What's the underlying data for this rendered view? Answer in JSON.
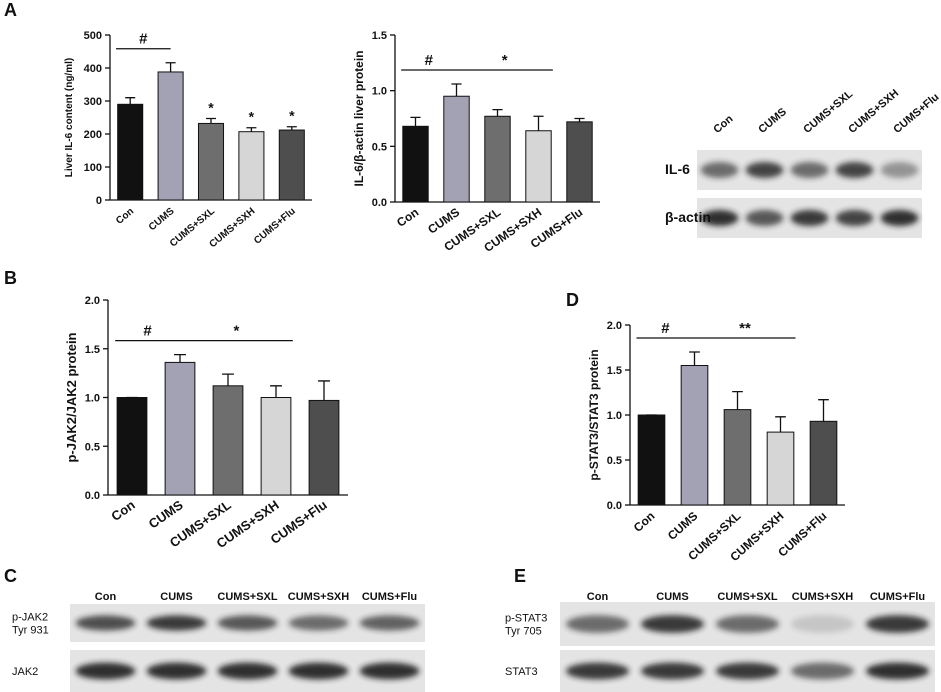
{
  "panels": [
    "A",
    "B",
    "C",
    "D",
    "E"
  ],
  "chart_data": [
    {
      "type": "bar",
      "ylabel": "Liver IL-6 content (ng/ml)",
      "categories": [
        "Con",
        "CUMS",
        "CUMS+SXL",
        "CUMS+SXH",
        "CUMS+Flu"
      ],
      "values": [
        290,
        388,
        232,
        207,
        212
      ],
      "errors": [
        20,
        28,
        15,
        12,
        10
      ],
      "colors": [
        "#111111",
        "#a2a2b4",
        "#6e6e6e",
        "#d6d6d6",
        "#4e4e4e"
      ],
      "ylim": [
        0,
        500
      ],
      "yticks": [
        0,
        100,
        200,
        300,
        400,
        500
      ],
      "annotations": [
        "#",
        "*",
        "*",
        "*"
      ]
    },
    {
      "type": "bar",
      "ylabel": "IL-6/β-actin liver protein",
      "categories": [
        "Con",
        "CUMS",
        "CUMS+SXL",
        "CUMS+SXH",
        "CUMS+Flu"
      ],
      "values": [
        0.68,
        0.95,
        0.77,
        0.64,
        0.72
      ],
      "errors": [
        0.08,
        0.11,
        0.06,
        0.13,
        0.03
      ],
      "colors": [
        "#111111",
        "#a2a2b4",
        "#6e6e6e",
        "#d6d6d6",
        "#4e4e4e"
      ],
      "ylim": [
        0,
        1.5
      ],
      "yticks": [
        {
          "value": 0,
          "label": "0.0"
        },
        {
          "value": 0.5,
          "label": "0.5"
        },
        {
          "value": 1,
          "label": "1.0"
        },
        {
          "value": 1.5,
          "label": "1.5"
        }
      ],
      "annotations": [
        "#",
        "*"
      ]
    },
    {
      "type": "bar",
      "ylabel": "p-JAK2/JAK2  protein",
      "categories": [
        "Con",
        "CUMS",
        "CUMS+SXL",
        "CUMS+SXH",
        "CUMS+Flu"
      ],
      "values": [
        1.0,
        1.36,
        1.12,
        1.0,
        0.97
      ],
      "errors": [
        0,
        0.08,
        0.12,
        0.12,
        0.2
      ],
      "colors": [
        "#111111",
        "#a2a2b4",
        "#6e6e6e",
        "#d6d6d6",
        "#4e4e4e"
      ],
      "ylim": [
        0,
        2
      ],
      "yticks": [
        {
          "value": 0,
          "label": "0.0"
        },
        {
          "value": 0.5,
          "label": "0.5"
        },
        {
          "value": 1,
          "label": "1.0"
        },
        {
          "value": 1.5,
          "label": "1.5"
        },
        {
          "value": 2,
          "label": "2.0"
        }
      ],
      "annotations": [
        "#",
        "*"
      ]
    },
    {
      "type": "bar",
      "ylabel": "p-STAT3/STAT3 protein",
      "categories": [
        "Con",
        "CUMS",
        "CUMS+SXL",
        "CUMS+SXH",
        "CUMS+Flu"
      ],
      "values": [
        1.0,
        1.55,
        1.06,
        0.81,
        0.93
      ],
      "errors": [
        0,
        0.15,
        0.2,
        0.17,
        0.24
      ],
      "colors": [
        "#111111",
        "#a2a2b4",
        "#6e6e6e",
        "#d6d6d6",
        "#4e4e4e"
      ],
      "ylim": [
        0,
        2
      ],
      "yticks": [
        {
          "value": 0,
          "label": "0.0"
        },
        {
          "value": 0.5,
          "label": "0.5"
        },
        {
          "value": 1,
          "label": "1.0"
        },
        {
          "value": 1.5,
          "label": "1.5"
        },
        {
          "value": 2,
          "label": "2.0"
        }
      ],
      "annotations": [
        "#",
        "**"
      ]
    }
  ],
  "blots": [
    {
      "lanes": [
        "Con",
        "CUMS",
        "CUMS+SXL",
        "CUMS+SXH",
        "CUMS+Flu"
      ],
      "rows": [
        [
          "IL-6"
        ],
        [
          "β-actin"
        ]
      ]
    },
    {
      "lanes": [
        "Con",
        "CUMS",
        "CUMS+SXL",
        "CUMS+SXH",
        "CUMS+Flu"
      ],
      "rows": [
        [
          "p-JAK2",
          "Tyr 931"
        ],
        [
          "JAK2"
        ]
      ]
    },
    {
      "lanes": [
        "Con",
        "CUMS",
        "CUMS+SXL",
        "CUMS+SXH",
        "CUMS+Flu"
      ],
      "rows": [
        [
          "p-STAT3",
          "Tyr 705"
        ],
        [
          "STAT3"
        ]
      ]
    }
  ]
}
